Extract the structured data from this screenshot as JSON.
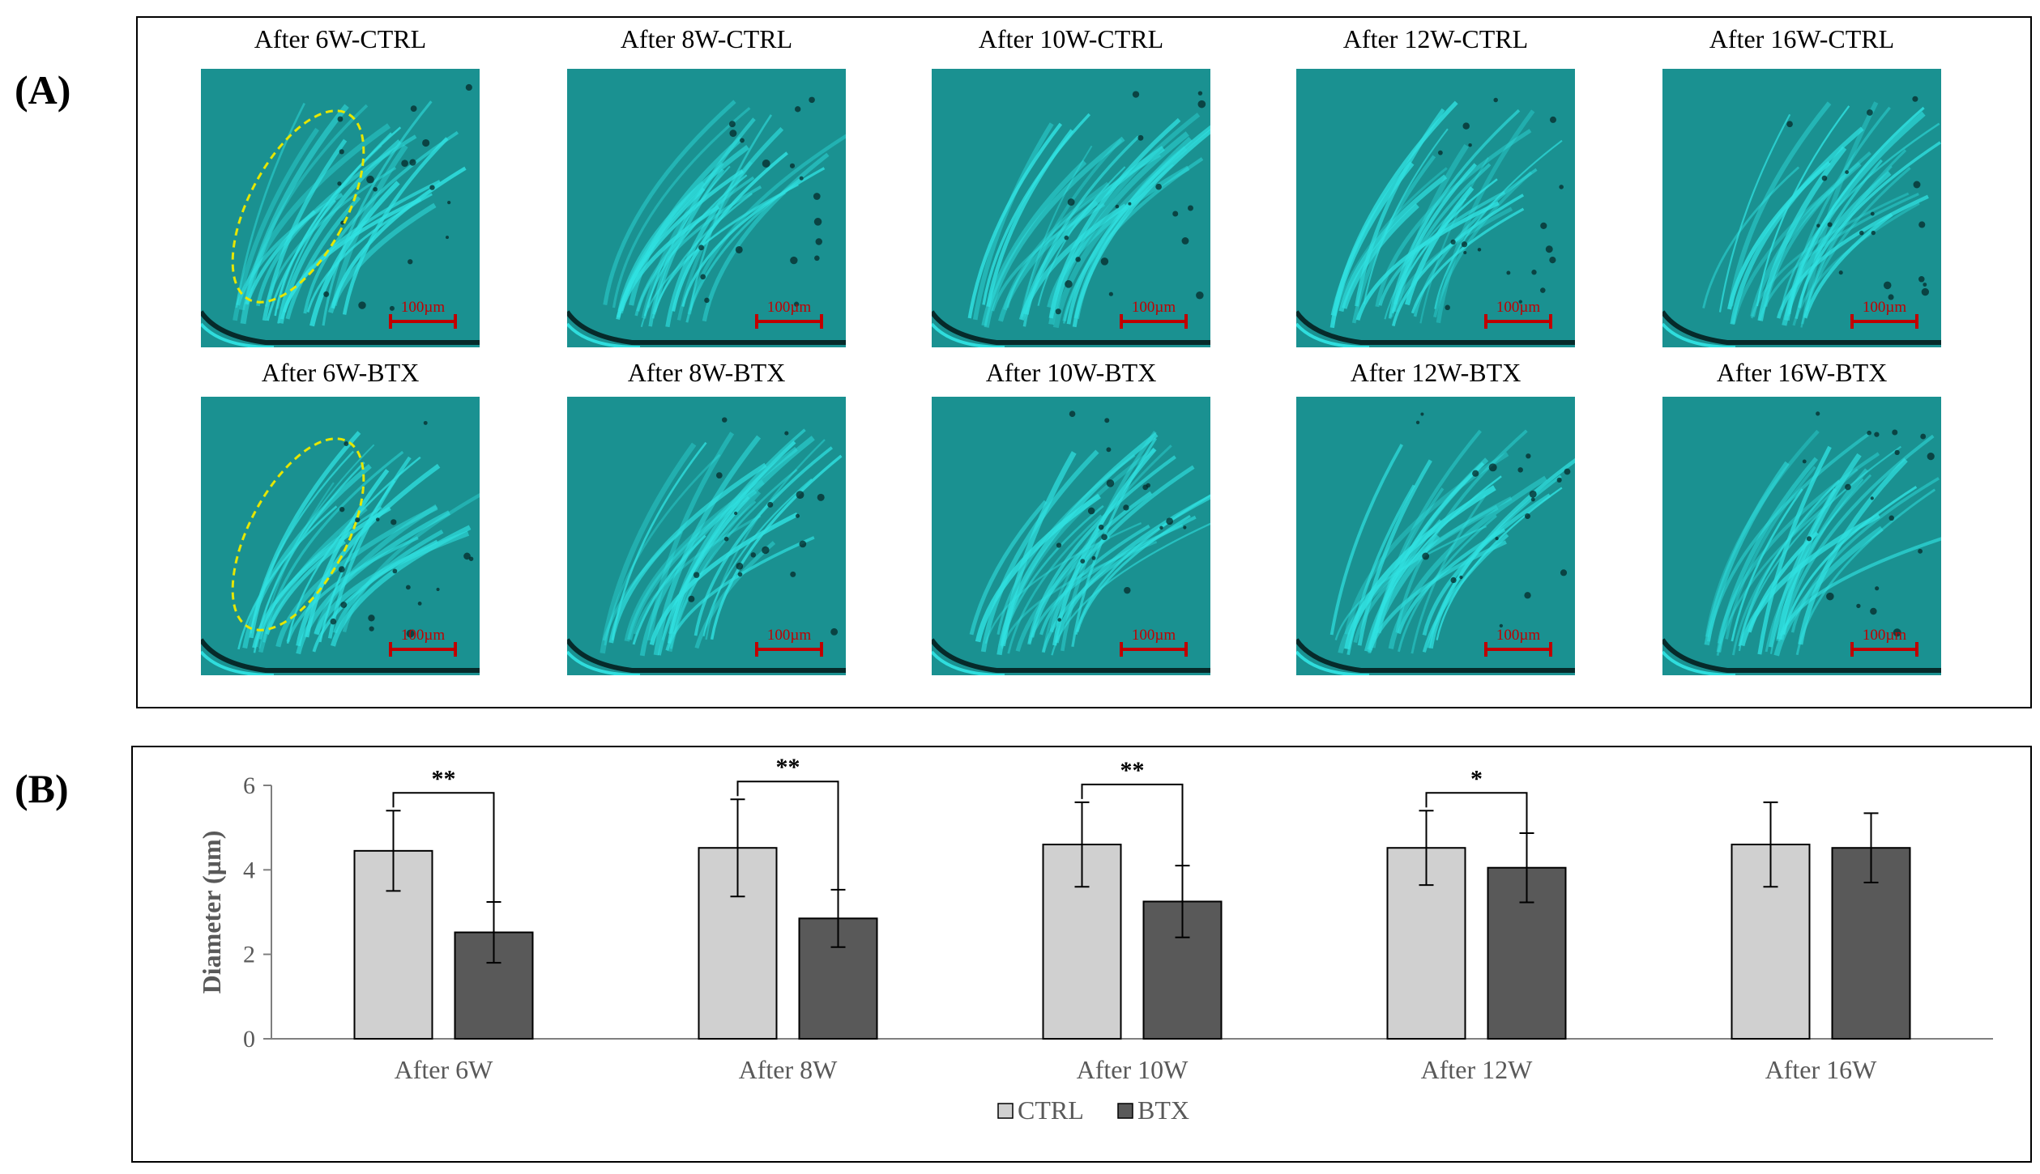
{
  "panels": {
    "a_label": "(A)",
    "b_label": "(B)"
  },
  "micrographs": {
    "scale_text": "100µm",
    "colors": {
      "tissue": "#1fa8a8",
      "bright": "#34f0f0",
      "dark": "#062a2a",
      "scalebar": "#c00000",
      "roi": "#e6e600"
    },
    "ctrl": [
      {
        "caption": "After 6W-CTRL",
        "roi": true
      },
      {
        "caption": "After 8W-CTRL",
        "roi": false
      },
      {
        "caption": "After 10W-CTRL",
        "roi": false
      },
      {
        "caption": "After 12W-CTRL",
        "roi": false
      },
      {
        "caption": "After 16W-CTRL",
        "roi": false
      }
    ],
    "btx": [
      {
        "caption": "After 6W-BTX",
        "roi": true
      },
      {
        "caption": "After 8W-BTX",
        "roi": false
      },
      {
        "caption": "After 10W-BTX",
        "roi": false
      },
      {
        "caption": "After 12W-BTX",
        "roi": false
      },
      {
        "caption": "After 16W-BTX",
        "roi": false
      }
    ]
  },
  "chart_data": {
    "type": "bar",
    "title": "",
    "xlabel": "",
    "ylabel": "Diameter (µm)",
    "ylim": [
      0,
      6
    ],
    "yticks": [
      "0",
      "2",
      "4",
      "6"
    ],
    "categories": [
      "After 6W",
      "After 8W",
      "After 10W",
      "After 12W",
      "After 16W"
    ],
    "series": [
      {
        "name": "CTRL",
        "color": "#d0d0d0",
        "values": [
          4.45,
          4.52,
          4.6,
          4.52,
          4.6
        ],
        "errors": [
          0.95,
          1.15,
          1.0,
          0.88,
          1.0
        ]
      },
      {
        "name": "BTX",
        "color": "#595959",
        "values": [
          2.52,
          2.85,
          3.25,
          4.05,
          4.52
        ],
        "errors": [
          0.72,
          0.68,
          0.85,
          0.82,
          0.82
        ]
      }
    ],
    "significance": [
      "**",
      "**",
      "**",
      "*",
      ""
    ],
    "legend_position": "bottom-center"
  }
}
